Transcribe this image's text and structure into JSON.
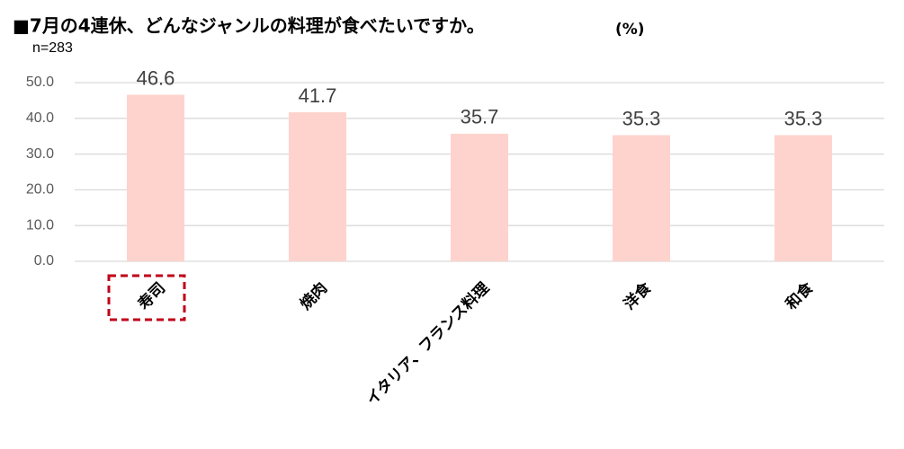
{
  "chart_data": {
    "type": "bar",
    "title": "■7月の4連休、どんなジャンルの料理が食べたいですか。",
    "unit_label": "(%)",
    "subtitle": "n=283",
    "categories": [
      "寿司",
      "焼肉",
      "イタリア、フランス料理",
      "洋食",
      "和食"
    ],
    "values": [
      46.6,
      41.7,
      35.7,
      35.3,
      35.3
    ],
    "color": "#ffd3cd",
    "ylim": [
      0,
      50
    ],
    "yticks": [
      {
        "value": 0,
        "label": "0.0"
      },
      {
        "value": 10,
        "label": "10.0"
      },
      {
        "value": 20,
        "label": "20.0"
      },
      {
        "value": 30,
        "label": "30.0"
      },
      {
        "value": 40,
        "label": "40.0"
      },
      {
        "value": 50,
        "label": "50.0"
      }
    ],
    "grid": true
  }
}
